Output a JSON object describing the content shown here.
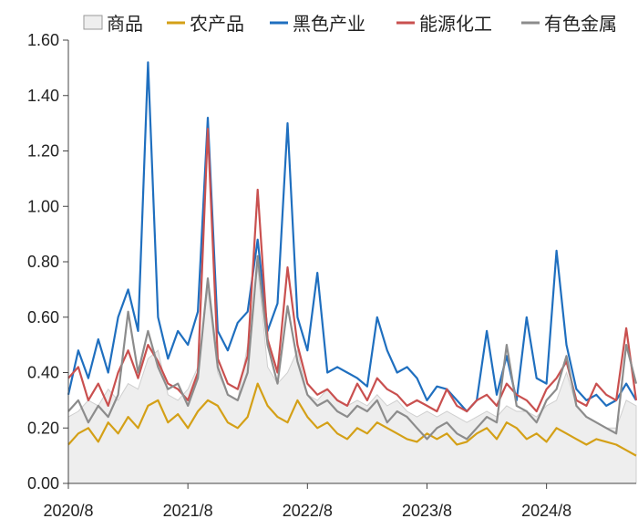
{
  "chart_data": {
    "type": "line",
    "legend": {
      "placement": "top",
      "entries": [
        {
          "name": "商品",
          "color": "#d9d9d9",
          "style": "area"
        },
        {
          "name": "农产品",
          "color": "#d4a017",
          "style": "line"
        },
        {
          "name": "黑色产业",
          "color": "#1f6fbf",
          "style": "line"
        },
        {
          "name": "能源化工",
          "color": "#c9504f",
          "style": "line"
        },
        {
          "name": "有色金属",
          "color": "#8c8c8c",
          "style": "line"
        }
      ]
    },
    "x_ticks": [
      "2020/8",
      "2021/8",
      "2022/8",
      "2023/8",
      "2024/8"
    ],
    "x_range": [
      "2020/8",
      "2025/5"
    ],
    "y_ticks": [
      "0.00",
      "0.20",
      "0.40",
      "0.60",
      "0.80",
      "1.00",
      "1.20",
      "1.40",
      "1.60"
    ],
    "ylim": [
      0,
      1.6
    ],
    "grid": false,
    "x": [
      "2020/8",
      "2020/9",
      "2020/10",
      "2020/11",
      "2020/12",
      "2021/1",
      "2021/2",
      "2021/3",
      "2021/4",
      "2021/5",
      "2021/6",
      "2021/7",
      "2021/8",
      "2021/9",
      "2021/10",
      "2021/11",
      "2021/12",
      "2022/1",
      "2022/2",
      "2022/3",
      "2022/4",
      "2022/5",
      "2022/6",
      "2022/7",
      "2022/8",
      "2022/9",
      "2022/10",
      "2022/11",
      "2022/12",
      "2023/1",
      "2023/2",
      "2023/3",
      "2023/4",
      "2023/5",
      "2023/6",
      "2023/7",
      "2023/8",
      "2023/9",
      "2023/10",
      "2023/11",
      "2023/12",
      "2024/1",
      "2024/2",
      "2024/3",
      "2024/4",
      "2024/5",
      "2024/6",
      "2024/7",
      "2024/8",
      "2024/9",
      "2024/10",
      "2024/11",
      "2024/12",
      "2025/1",
      "2025/2",
      "2025/3",
      "2025/4",
      "2025/5"
    ],
    "series": [
      {
        "name": "商品",
        "color": "#d9d9d9",
        "values": [
          0.24,
          0.26,
          0.3,
          0.28,
          0.34,
          0.3,
          0.36,
          0.34,
          0.45,
          0.48,
          0.32,
          0.3,
          0.34,
          0.42,
          0.7,
          0.4,
          0.32,
          0.3,
          0.5,
          0.78,
          0.42,
          0.36,
          0.4,
          0.48,
          0.32,
          0.3,
          0.34,
          0.3,
          0.28,
          0.3,
          0.28,
          0.32,
          0.28,
          0.3,
          0.26,
          0.24,
          0.26,
          0.24,
          0.26,
          0.24,
          0.22,
          0.24,
          0.26,
          0.24,
          0.28,
          0.26,
          0.26,
          0.24,
          0.28,
          0.3,
          0.4,
          0.28,
          0.24,
          0.22,
          0.2,
          0.2,
          0.3,
          0.28
        ]
      },
      {
        "name": "农产品",
        "color": "#d4a017",
        "values": [
          0.14,
          0.18,
          0.2,
          0.15,
          0.22,
          0.18,
          0.24,
          0.2,
          0.28,
          0.3,
          0.22,
          0.25,
          0.2,
          0.26,
          0.3,
          0.28,
          0.22,
          0.2,
          0.24,
          0.36,
          0.28,
          0.24,
          0.22,
          0.3,
          0.24,
          0.2,
          0.22,
          0.18,
          0.16,
          0.2,
          0.18,
          0.22,
          0.2,
          0.18,
          0.16,
          0.15,
          0.18,
          0.16,
          0.18,
          0.14,
          0.15,
          0.18,
          0.2,
          0.16,
          0.22,
          0.2,
          0.16,
          0.18,
          0.15,
          0.2,
          0.18,
          0.16,
          0.14,
          0.16,
          0.15,
          0.14,
          0.12,
          0.1
        ]
      },
      {
        "name": "黑色产业",
        "color": "#1f6fbf",
        "values": [
          0.32,
          0.48,
          0.38,
          0.52,
          0.4,
          0.6,
          0.7,
          0.55,
          1.52,
          0.6,
          0.45,
          0.55,
          0.5,
          0.62,
          1.32,
          0.55,
          0.48,
          0.58,
          0.62,
          0.88,
          0.55,
          0.65,
          1.3,
          0.6,
          0.48,
          0.76,
          0.4,
          0.42,
          0.4,
          0.38,
          0.35,
          0.6,
          0.48,
          0.4,
          0.42,
          0.38,
          0.3,
          0.35,
          0.34,
          0.3,
          0.26,
          0.3,
          0.55,
          0.32,
          0.46,
          0.3,
          0.6,
          0.38,
          0.36,
          0.84,
          0.5,
          0.34,
          0.3,
          0.32,
          0.28,
          0.3,
          0.36,
          0.3
        ]
      },
      {
        "name": "能源化工",
        "color": "#c9504f",
        "values": [
          0.38,
          0.42,
          0.3,
          0.36,
          0.28,
          0.4,
          0.48,
          0.38,
          0.5,
          0.44,
          0.36,
          0.34,
          0.3,
          0.4,
          1.28,
          0.45,
          0.36,
          0.34,
          0.46,
          1.06,
          0.52,
          0.4,
          0.78,
          0.5,
          0.36,
          0.32,
          0.34,
          0.3,
          0.28,
          0.36,
          0.3,
          0.38,
          0.34,
          0.32,
          0.28,
          0.3,
          0.28,
          0.26,
          0.34,
          0.28,
          0.26,
          0.3,
          0.32,
          0.28,
          0.36,
          0.32,
          0.3,
          0.26,
          0.34,
          0.38,
          0.44,
          0.3,
          0.28,
          0.36,
          0.32,
          0.3,
          0.56,
          0.3
        ]
      },
      {
        "name": "有色金属",
        "color": "#8c8c8c",
        "values": [
          0.26,
          0.3,
          0.22,
          0.28,
          0.24,
          0.32,
          0.62,
          0.4,
          0.55,
          0.42,
          0.34,
          0.36,
          0.28,
          0.38,
          0.74,
          0.42,
          0.32,
          0.3,
          0.4,
          0.82,
          0.5,
          0.36,
          0.64,
          0.44,
          0.32,
          0.28,
          0.3,
          0.26,
          0.24,
          0.28,
          0.26,
          0.3,
          0.22,
          0.26,
          0.24,
          0.2,
          0.16,
          0.2,
          0.22,
          0.18,
          0.16,
          0.2,
          0.24,
          0.22,
          0.5,
          0.28,
          0.26,
          0.22,
          0.3,
          0.34,
          0.46,
          0.28,
          0.24,
          0.22,
          0.2,
          0.18,
          0.5,
          0.36
        ]
      }
    ]
  }
}
